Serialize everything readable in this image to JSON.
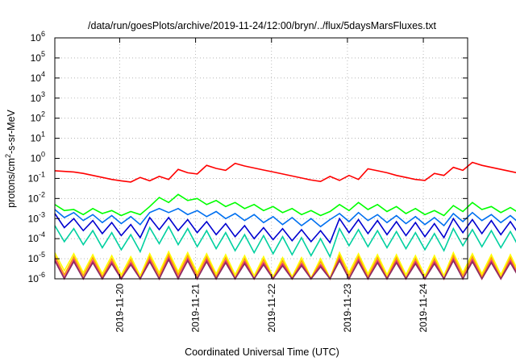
{
  "chart_data": {
    "type": "line",
    "title": "/data/run/goesPlots/archive/2019-11-24/12:00/bryn/../flux/5daysMarsFluxes.txt",
    "xlabel": "Coordinated Universal Time (UTC)",
    "ylabel": {
      "pre": "protons/cm",
      "sup": "2",
      "post": "-s-sr-MeV"
    },
    "yscale": "log",
    "ylim_exp": [
      -6,
      6
    ],
    "y_ticks": [
      {
        "base": "10",
        "exp": "-6",
        "value": -6
      },
      {
        "base": "10",
        "exp": "-5",
        "value": -5
      },
      {
        "base": "10",
        "exp": "-4",
        "value": -4
      },
      {
        "base": "10",
        "exp": "-3",
        "value": -3
      },
      {
        "base": "10",
        "exp": "-2",
        "value": -2
      },
      {
        "base": "10",
        "exp": "-1",
        "value": -1
      },
      {
        "base": "10",
        "exp": "0",
        "value": 0
      },
      {
        "base": "10",
        "exp": "1",
        "value": 1
      },
      {
        "base": "10",
        "exp": "2",
        "value": 2
      },
      {
        "base": "10",
        "exp": "3",
        "value": 3
      },
      {
        "base": "10",
        "exp": "4",
        "value": 4
      },
      {
        "base": "10",
        "exp": "5",
        "value": 5
      },
      {
        "base": "10",
        "exp": "6",
        "value": 6
      }
    ],
    "xlim": [
      "2019-11-19T03:30",
      "2019-11-24T14:00"
    ],
    "x_ticks": [
      {
        "label": "2019-11-20",
        "value": "2019-11-20T00:00"
      },
      {
        "label": "2019-11-21",
        "value": "2019-11-21T00:00"
      },
      {
        "label": "2019-11-22",
        "value": "2019-11-22T00:00"
      },
      {
        "label": "2019-11-23",
        "value": "2019-11-23T00:00"
      },
      {
        "label": "2019-11-24",
        "value": "2019-11-24T00:00"
      }
    ],
    "grid": true,
    "legend": "none",
    "series": [
      {
        "color": "#ff0000",
        "cycle_hours": 3,
        "values": [
          -0.62,
          -0.65,
          -0.68,
          -0.75,
          -0.85,
          -0.95,
          -1.05,
          -1.12,
          -1.18,
          -0.95,
          -1.12,
          -0.9,
          -1.05,
          -0.55,
          -0.72,
          -0.78,
          -0.35,
          -0.5,
          -0.6,
          -0.25,
          -0.38,
          -0.48,
          -0.58,
          -0.68,
          -0.78,
          -0.88,
          -0.98,
          -1.08,
          -1.15,
          -0.9,
          -1.1,
          -0.85,
          -1.05,
          -0.52,
          -0.62,
          -0.72,
          -0.85,
          -0.95,
          -1.05,
          -1.1,
          -0.75,
          -0.85,
          -0.45,
          -0.6,
          -0.2,
          -0.35,
          -0.45,
          -0.55,
          -0.65,
          -0.75,
          -0.85,
          -0.95,
          -1.05,
          -1.12,
          -0.92,
          -1.12,
          -0.88,
          -1.06,
          -0.62,
          -0.75,
          -0.9,
          -0.35,
          -0.5,
          -0.65,
          -0.15,
          -0.32,
          -0.42,
          -0.52,
          -0.62,
          -0.72,
          -0.82,
          -0.92,
          -1.02,
          -1.1,
          -0.82,
          -1.0,
          -0.38,
          -0.55,
          -0.45,
          -0.6,
          -0.5,
          -0.62,
          -0.55,
          -0.65,
          -0.7,
          -0.9,
          -0.62,
          -0.8,
          -0.72,
          -0.88
        ]
      },
      {
        "color": "#00ff00",
        "cycle_hours": 3,
        "values": [
          -2.3,
          -2.6,
          -2.55,
          -2.8,
          -2.5,
          -2.75,
          -2.6,
          -2.85,
          -2.65,
          -2.8,
          -2.4,
          -1.95,
          -2.2,
          -1.8,
          -2.1,
          -2.0,
          -2.3,
          -2.1,
          -2.4,
          -2.2,
          -2.5,
          -2.3,
          -2.6,
          -2.4,
          -2.7,
          -2.5,
          -2.8,
          -2.6,
          -2.85,
          -2.65,
          -2.3,
          -2.6,
          -2.2,
          -2.55,
          -2.3,
          -2.65,
          -2.4,
          -2.75,
          -2.5,
          -2.8,
          -2.6,
          -2.85,
          -2.35,
          -2.65,
          -2.2,
          -2.55,
          -2.4,
          -2.7,
          -2.45,
          -2.75,
          -2.5,
          -2.8,
          -2.55,
          -2.85,
          -2.35,
          -2.7,
          -2.25,
          -2.6,
          -2.35,
          -2.7,
          -2.25,
          -2.6,
          -2.3,
          -2.65,
          -2.2,
          -2.55,
          -2.35,
          -2.65,
          -2.45,
          -2.75,
          -2.5,
          -2.8,
          -2.6,
          -2.85,
          -2.4,
          -2.7,
          -2.3,
          -2.6,
          -2.35,
          -2.7,
          -2.4,
          -2.7,
          -2.45,
          -2.75,
          -2.2,
          -1.95,
          -2.3,
          -2.15,
          -2.45,
          -2.3
        ]
      },
      {
        "color": "#0070f0",
        "cycle_hours": 3,
        "values": [
          -2.55,
          -2.95,
          -2.7,
          -3.1,
          -2.8,
          -3.2,
          -2.85,
          -3.25,
          -2.9,
          -3.3,
          -2.7,
          -2.5,
          -2.7,
          -2.5,
          -2.8,
          -2.6,
          -2.9,
          -2.65,
          -3.0,
          -2.75,
          -3.1,
          -2.8,
          -3.2,
          -2.9,
          -3.3,
          -2.95,
          -3.35,
          -3.0,
          -3.4,
          -3.05,
          -2.75,
          -3.15,
          -2.7,
          -3.1,
          -2.8,
          -3.2,
          -2.85,
          -3.25,
          -2.9,
          -3.3,
          -2.95,
          -3.35,
          -2.75,
          -3.15,
          -2.7,
          -3.1,
          -2.8,
          -3.2,
          -2.85,
          -3.25,
          -2.9,
          -3.3,
          -2.95,
          -3.35,
          -2.75,
          -3.15,
          -2.7,
          -3.1,
          -2.75,
          -3.15,
          -2.7,
          -3.1,
          -2.8,
          -3.2,
          -2.7,
          -3.1,
          -2.8,
          -3.2,
          -2.85,
          -3.25,
          -2.9,
          -3.3,
          -2.95,
          -3.35,
          -2.8,
          -3.2,
          -2.75,
          -3.15,
          -2.8,
          -3.2,
          -2.85,
          -3.25,
          -2.9,
          -3.3,
          -2.65,
          -2.5,
          -2.75,
          -2.9,
          -3.2,
          -3.0
        ]
      },
      {
        "color": "#0000d0",
        "cycle_hours": 3,
        "values": [
          -2.75,
          -3.45,
          -3.0,
          -3.6,
          -3.1,
          -3.75,
          -3.2,
          -3.85,
          -3.3,
          -3.95,
          -2.95,
          -3.55,
          -2.95,
          -3.6,
          -3.05,
          -3.7,
          -3.15,
          -3.8,
          -3.25,
          -3.9,
          -3.35,
          -4.0,
          -3.45,
          -4.05,
          -3.5,
          -4.1,
          -3.55,
          -4.15,
          -3.6,
          -4.2,
          -3.0,
          -3.7,
          -3.05,
          -3.75,
          -3.1,
          -3.8,
          -3.15,
          -3.85,
          -3.2,
          -3.9,
          -3.25,
          -3.95,
          -3.0,
          -3.7,
          -3.05,
          -3.75,
          -3.1,
          -3.8,
          -3.15,
          -3.85,
          -3.2,
          -3.9,
          -3.25,
          -3.95,
          -3.05,
          -3.75,
          -3.05,
          -3.7,
          -3.1,
          -3.75,
          -3.05,
          -3.75,
          -3.1,
          -3.8,
          -3.0,
          -3.7,
          -3.1,
          -3.8,
          -3.15,
          -3.85,
          -3.2,
          -3.9,
          -3.25,
          -3.95,
          -3.1,
          -3.8,
          -3.05,
          -3.75,
          -3.1,
          -3.8,
          -3.15,
          -3.85,
          -3.2,
          -3.9,
          -3.0,
          -3.6,
          -3.1,
          -3.8,
          -3.5,
          -4.0
        ]
      },
      {
        "color": "#00d0a0",
        "cycle_hours": 3,
        "values": [
          -3.35,
          -4.15,
          -3.5,
          -4.3,
          -3.6,
          -4.45,
          -3.7,
          -4.55,
          -3.8,
          -4.65,
          -3.45,
          -4.25,
          -3.4,
          -4.3,
          -3.5,
          -4.4,
          -3.6,
          -4.5,
          -3.7,
          -4.6,
          -3.8,
          -4.7,
          -3.85,
          -4.75,
          -3.9,
          -4.8,
          -3.95,
          -4.85,
          -4.0,
          -4.9,
          -3.5,
          -4.35,
          -3.55,
          -4.4,
          -3.6,
          -4.45,
          -3.65,
          -4.5,
          -3.7,
          -4.55,
          -3.75,
          -4.6,
          -3.5,
          -4.35,
          -3.55,
          -4.4,
          -3.6,
          -4.45,
          -3.65,
          -4.5,
          -3.7,
          -4.55,
          -3.75,
          -4.6,
          -3.55,
          -4.4,
          -3.5,
          -4.35,
          -3.55,
          -4.4,
          -3.5,
          -4.4,
          -3.55,
          -4.45,
          -3.45,
          -4.35,
          -3.55,
          -4.45,
          -3.6,
          -4.5,
          -3.65,
          -4.55,
          -3.7,
          -4.6,
          -3.55,
          -4.45,
          -3.5,
          -4.4,
          -3.55,
          -4.45,
          -3.6,
          -4.5,
          -3.65,
          -4.55,
          -3.5,
          -4.3,
          -3.55,
          -4.45,
          -3.95,
          -4.6
        ]
      },
      {
        "color": "#ffff00",
        "cycle_hours": 3,
        "values": [
          -4.7,
          -5.6,
          -4.75,
          -5.7,
          -4.8,
          -5.75,
          -4.85,
          -5.8,
          -4.9,
          -5.85,
          -4.75,
          -5.7,
          -4.65,
          -5.65,
          -4.7,
          -5.7,
          -4.75,
          -5.75,
          -4.8,
          -5.8,
          -4.85,
          -5.85,
          -4.9,
          -5.9,
          -4.95,
          -5.9,
          -4.95,
          -5.95,
          -5.0,
          -5.95,
          -4.7,
          -5.7,
          -4.75,
          -5.75,
          -4.8,
          -5.8,
          -4.8,
          -5.8,
          -4.85,
          -5.85,
          -4.85,
          -5.85,
          -4.7,
          -5.7,
          -4.75,
          -5.75,
          -4.8,
          -5.8,
          -4.8,
          -5.8,
          -4.85,
          -5.85,
          -4.85,
          -5.85,
          -4.75,
          -5.75,
          -4.7,
          -5.7,
          -4.75,
          -5.75,
          -4.7,
          -5.7,
          -4.75,
          -5.75,
          -4.7,
          -5.7,
          -4.75,
          -5.75,
          -4.8,
          -5.8,
          -4.8,
          -5.8,
          -4.85,
          -5.85,
          -4.75,
          -5.75,
          -4.7,
          -5.7,
          -4.75,
          -5.75,
          -4.8,
          -5.8,
          -4.8,
          -5.8,
          -4.7,
          -5.65,
          -4.75,
          -5.75,
          -5.0,
          -5.85
        ]
      },
      {
        "color": "#ffa000",
        "cycle_hours": 3,
        "values": [
          -4.85,
          -5.8,
          -4.9,
          -5.85,
          -4.95,
          -5.9,
          -5.0,
          -5.95,
          -5.05,
          -6.0,
          -4.9,
          -5.85,
          -4.8,
          -5.8,
          -4.85,
          -5.85,
          -4.9,
          -5.9,
          -4.95,
          -5.95,
          -5.0,
          -6.0,
          -5.05,
          -6.0,
          -5.1,
          -6.0,
          -5.1,
          -6.0,
          -5.15,
          -6.0,
          -4.85,
          -5.85,
          -4.9,
          -5.9,
          -4.95,
          -5.95,
          -4.95,
          -5.95,
          -5.0,
          -6.0,
          -5.0,
          -6.0,
          -4.85,
          -5.85,
          -4.9,
          -5.9,
          -4.95,
          -5.95,
          -4.95,
          -5.95,
          -5.0,
          -6.0,
          -5.0,
          -6.0,
          -4.9,
          -5.9,
          -4.85,
          -5.85,
          -4.9,
          -5.9,
          -4.85,
          -5.85,
          -4.9,
          -5.9,
          -4.85,
          -5.85,
          -4.9,
          -5.9,
          -4.95,
          -5.95,
          -4.95,
          -5.95,
          -5.0,
          -6.0,
          -4.9,
          -5.9,
          -4.85,
          -5.85,
          -4.9,
          -5.9,
          -4.95,
          -5.95,
          -4.95,
          -5.95,
          -4.85,
          -5.8,
          -4.9,
          -5.9,
          -5.15,
          -6.0
        ]
      },
      {
        "color": "#e03070",
        "cycle_hours": 3,
        "values": [
          -5.0,
          -5.95,
          -5.05,
          -6.0,
          -5.1,
          -6.0,
          -5.15,
          -6.0,
          -5.2,
          -6.0,
          -5.05,
          -6.0,
          -4.95,
          -5.95,
          -5.0,
          -6.0,
          -5.05,
          -6.0,
          -5.1,
          -6.0,
          -5.15,
          -6.0,
          -5.2,
          -6.0,
          -5.25,
          -6.0,
          -5.25,
          -6.0,
          -5.3,
          -6.0,
          -5.0,
          -6.0,
          -5.05,
          -6.0,
          -5.1,
          -6.0,
          -5.1,
          -6.0,
          -5.15,
          -6.0,
          -5.15,
          -6.0,
          -5.0,
          -6.0,
          -5.05,
          -6.0,
          -5.1,
          -6.0,
          -5.1,
          -6.0,
          -5.15,
          -6.0,
          -5.15,
          -6.0,
          -5.05,
          -6.0,
          -5.0,
          -6.0,
          -5.05,
          -6.0,
          -5.0,
          -6.0,
          -5.05,
          -6.0,
          -5.0,
          -6.0,
          -5.05,
          -6.0,
          -5.1,
          -6.0,
          -5.1,
          -6.0,
          -5.15,
          -6.0,
          -5.05,
          -6.0,
          -5.0,
          -6.0,
          -5.05,
          -6.0,
          -5.1,
          -6.0,
          -5.1,
          -6.0,
          -5.0,
          -5.95,
          -5.05,
          -6.0,
          -5.3,
          -6.0
        ]
      },
      {
        "color": "#8b3060",
        "cycle_hours": 3,
        "values": [
          -5.1,
          -6.0,
          -5.15,
          -6.0,
          -5.2,
          -6.0,
          -5.25,
          -6.0,
          -5.3,
          -6.0,
          -5.15,
          -6.0,
          -5.05,
          -6.0,
          -5.1,
          -6.0,
          -5.15,
          -6.0,
          -5.2,
          -6.0,
          -5.25,
          -6.0,
          -5.3,
          -6.0,
          -5.35,
          -6.0,
          -5.35,
          -6.0,
          -5.4,
          -6.0,
          -5.1,
          -6.0,
          -5.15,
          -6.0,
          -5.2,
          -6.0,
          -5.2,
          -6.0,
          -5.25,
          -6.0,
          -5.25,
          -6.0,
          -5.1,
          -6.0,
          -5.15,
          -6.0,
          -5.2,
          -6.0,
          -5.2,
          -6.0,
          -5.25,
          -6.0,
          -5.25,
          -6.0,
          -5.15,
          -6.0,
          -5.1,
          -6.0,
          -5.15,
          -6.0,
          -5.1,
          -6.0,
          -5.15,
          -6.0,
          -5.1,
          -6.0,
          -5.15,
          -6.0,
          -5.2,
          -6.0,
          -5.2,
          -6.0,
          -5.25,
          -6.0,
          -5.15,
          -6.0,
          -5.1,
          -6.0,
          -5.15,
          -6.0,
          -5.2,
          -6.0,
          -5.2,
          -6.0,
          -5.1,
          -6.0,
          -5.15,
          -6.0,
          -5.4,
          -6.0
        ]
      }
    ]
  }
}
